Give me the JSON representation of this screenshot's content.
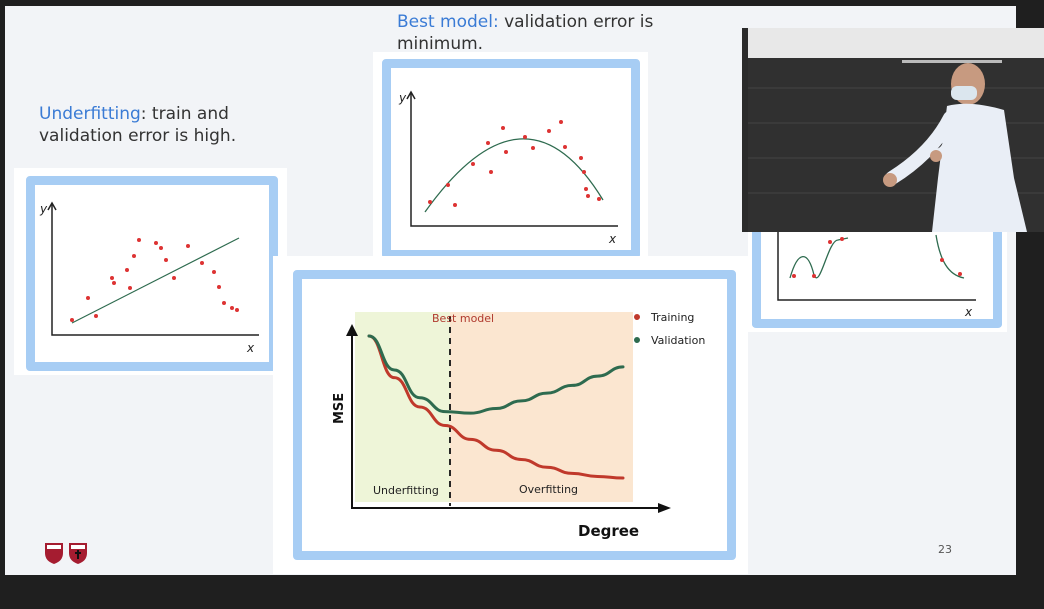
{
  "slide": {
    "underfitting": {
      "highlight": "Underfitting",
      "text": ": train and validation error is high."
    },
    "best_model": {
      "highlight": "Best model:",
      "text": " validation error is minimum."
    },
    "main_chart": {
      "best_model_label": "Best model",
      "legend_training": "Training",
      "legend_validation": "Validation",
      "y_axis_label": "MSE",
      "x_axis_label": "Degree",
      "region_left": "Underfitting",
      "region_right": "Overfitting"
    },
    "axis_x": "x",
    "axis_y": "y",
    "page_number": "23"
  },
  "chart_data": {
    "type": "line",
    "xlabel": "Degree",
    "ylabel": "MSE",
    "annotation": "Best model",
    "series": [
      {
        "name": "Training",
        "color": "#c0392b",
        "values": [
          10,
          7.3,
          5.4,
          4.2,
          3.3,
          2.6,
          2.0,
          1.5,
          1.1,
          0.9,
          0.8
        ]
      },
      {
        "name": "Validation",
        "color": "#2e6b4f",
        "values": [
          10,
          7.8,
          6.0,
          5.1,
          5.0,
          5.3,
          5.8,
          6.3,
          6.8,
          7.4,
          8.0
        ]
      }
    ],
    "x": [
      1,
      2,
      3,
      4,
      5,
      6,
      7,
      8,
      9,
      10,
      11
    ]
  },
  "colors": {
    "accent": "#3a7bd5",
    "frame": "#a7cdf4",
    "training": "#c0392b",
    "validation": "#2e6b4f"
  }
}
